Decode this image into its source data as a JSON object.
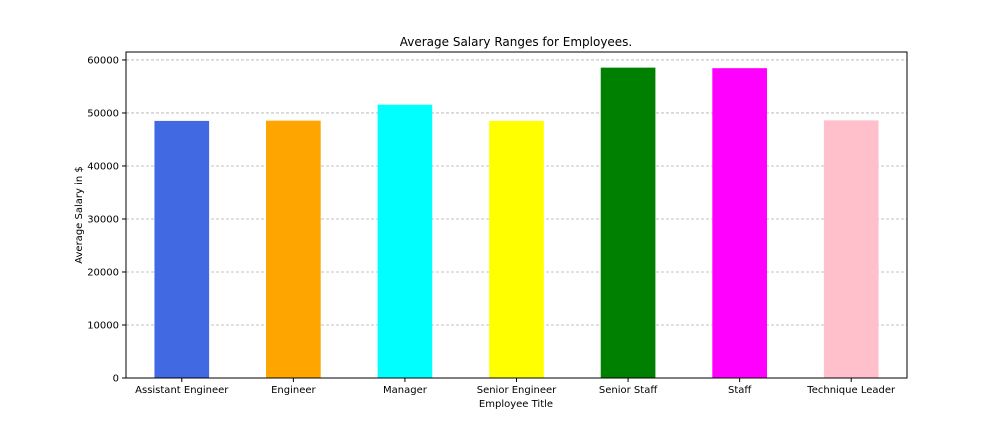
{
  "chart_data": {
    "type": "bar",
    "title": "Average Salary Ranges for Employees.",
    "xlabel": "Employee Title",
    "ylabel": "Average Salary in $",
    "categories": [
      "Assistant Engineer",
      "Engineer",
      "Manager",
      "Senior Engineer",
      "Senior Staff",
      "Staff",
      "Technique Leader"
    ],
    "values": [
      48500,
      48550,
      51550,
      48500,
      58550,
      58450,
      48600
    ],
    "colors": [
      "#4169e1",
      "#ffa500",
      "#00ffff",
      "#ffff00",
      "#008000",
      "#ff00ff",
      "#ffc0cb"
    ],
    "ylim": [
      0,
      61500
    ],
    "yticks": [
      0,
      10000,
      20000,
      30000,
      40000,
      50000,
      60000
    ],
    "ytick_labels": [
      "0",
      "10000",
      "20000",
      "30000",
      "40000",
      "50000",
      "60000"
    ],
    "grid": {
      "axis": "y",
      "style": "dashed",
      "color": "#b0b0b0"
    },
    "legend": "none"
  }
}
